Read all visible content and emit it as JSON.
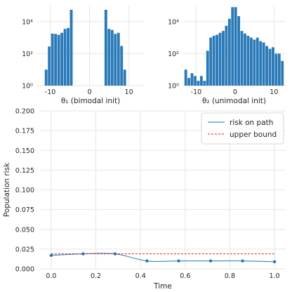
{
  "chart_data": [
    {
      "type": "bar",
      "panel": "top-left",
      "xlabel": "θ₁ (bimodal init)",
      "ylabel": "",
      "yscale": "log",
      "xlim": [
        -13.5,
        14
      ],
      "ylim": [
        1,
        100000
      ],
      "xticks": [
        -10,
        0,
        10
      ],
      "yticks": [
        1,
        100,
        10000
      ],
      "ytick_labels": [
        "10⁰",
        "10²",
        "10⁴"
      ],
      "grid": true,
      "bin_width": 0.8,
      "bins": [
        {
          "x": -11.0,
          "count": 10
        },
        {
          "x": -10.2,
          "count": 280
        },
        {
          "x": -9.4,
          "count": 1800
        },
        {
          "x": -8.6,
          "count": 1700
        },
        {
          "x": -7.8,
          "count": 1500
        },
        {
          "x": -7.0,
          "count": 2000
        },
        {
          "x": -6.2,
          "count": 3500
        },
        {
          "x": -5.4,
          "count": 4000
        },
        {
          "x": -4.6,
          "count": 55000
        },
        {
          "x": 4.2,
          "count": 55000
        },
        {
          "x": 5.0,
          "count": 3500
        },
        {
          "x": 5.8,
          "count": 3000
        },
        {
          "x": 6.6,
          "count": 1700
        },
        {
          "x": 7.4,
          "count": 2000
        },
        {
          "x": 8.2,
          "count": 300
        },
        {
          "x": 9.0,
          "count": 10
        }
      ]
    },
    {
      "type": "bar",
      "panel": "top-right",
      "xlabel": "θ₂ (unimodal init)",
      "ylabel": "",
      "yscale": "log",
      "xlim": [
        -13.5,
        13
      ],
      "ylim": [
        1,
        100000
      ],
      "xticks": [
        -10,
        0,
        10
      ],
      "yticks": [
        1,
        100,
        10000
      ],
      "ytick_labels": [
        "10⁰",
        "10²",
        "10⁴"
      ],
      "grid": true,
      "bin_width": 0.8,
      "bins": [
        {
          "x": -12.6,
          "count": 10
        },
        {
          "x": -11.8,
          "count": 3
        },
        {
          "x": -11.0,
          "count": 6
        },
        {
          "x": -10.2,
          "count": 4
        },
        {
          "x": -9.4,
          "count": 2
        },
        {
          "x": -8.6,
          "count": 4
        },
        {
          "x": -7.8,
          "count": 2
        },
        {
          "x": -7.0,
          "count": 150
        },
        {
          "x": -6.2,
          "count": 1000
        },
        {
          "x": -5.4,
          "count": 1300
        },
        {
          "x": -4.6,
          "count": 1500
        },
        {
          "x": -3.8,
          "count": 2000
        },
        {
          "x": -3.0,
          "count": 2600
        },
        {
          "x": -2.2,
          "count": 5500
        },
        {
          "x": -1.4,
          "count": 15000
        },
        {
          "x": -0.6,
          "count": 80000
        },
        {
          "x": 0.2,
          "count": 80000
        },
        {
          "x": 1.0,
          "count": 22000
        },
        {
          "x": 1.8,
          "count": 2600
        },
        {
          "x": 2.6,
          "count": 1800
        },
        {
          "x": 3.4,
          "count": 1300
        },
        {
          "x": 4.2,
          "count": 1000
        },
        {
          "x": 5.0,
          "count": 750
        },
        {
          "x": 5.8,
          "count": 1000
        },
        {
          "x": 6.6,
          "count": 600
        },
        {
          "x": 7.4,
          "count": 500
        },
        {
          "x": 8.2,
          "count": 300
        },
        {
          "x": 9.0,
          "count": 200
        },
        {
          "x": 9.8,
          "count": 250
        },
        {
          "x": 10.6,
          "count": 100
        },
        {
          "x": 11.4,
          "count": 100
        },
        {
          "x": 12.2,
          "count": 35
        }
      ]
    },
    {
      "type": "line",
      "panel": "bottom",
      "xlabel": "Time",
      "ylabel": "Population risk",
      "xlim": [
        -0.05,
        1.05
      ],
      "ylim": [
        0,
        0.2
      ],
      "xticks": [
        0.0,
        0.2,
        0.4,
        0.6,
        0.8,
        1.0
      ],
      "xtick_labels": [
        "0.0",
        "0.2",
        "0.4",
        "0.6",
        "0.8",
        "1.0"
      ],
      "yticks": [
        0,
        0.025,
        0.05,
        0.075,
        0.1,
        0.125,
        0.15,
        0.175,
        0.2
      ],
      "ytick_labels": [
        "0.000",
        "0.025",
        "0.050",
        "0.075",
        "0.100",
        "0.125",
        "0.150",
        "0.175",
        "0.200"
      ],
      "grid": true,
      "legend_position": "top-right",
      "series": [
        {
          "name": "risk on path",
          "color": "#1f77b4",
          "style": "solid",
          "markers": true,
          "x": [
            0.0,
            0.143,
            0.286,
            0.429,
            0.571,
            0.714,
            0.857,
            1.0
          ],
          "y": [
            0.017,
            0.019,
            0.019,
            0.01,
            0.01,
            0.01,
            0.01,
            0.009
          ]
        },
        {
          "name": "upper bound",
          "color": "#d62728",
          "style": "dashed",
          "markers": false,
          "x": [
            0.0,
            1.0
          ],
          "y": [
            0.019,
            0.019
          ]
        }
      ]
    }
  ]
}
